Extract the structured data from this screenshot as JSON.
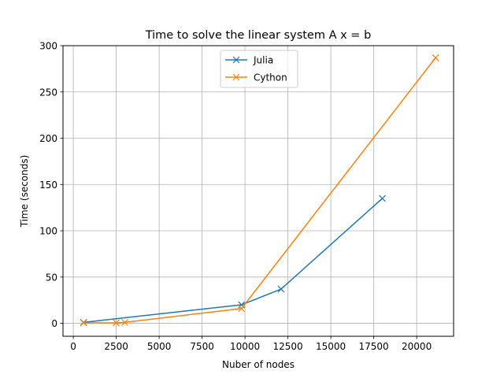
{
  "chart_data": {
    "type": "line",
    "title": "Time to solve the linear system A x = b",
    "xlabel": "Nuber of nodes",
    "ylabel": "Time (seconds)",
    "xlim": [
      -600,
      22150
    ],
    "ylim": [
      -14,
      300
    ],
    "xticks": [
      0,
      2500,
      5000,
      7500,
      10000,
      12500,
      15000,
      17500,
      20000
    ],
    "yticks": [
      0,
      50,
      100,
      150,
      200,
      250,
      300
    ],
    "grid": true,
    "legend_position": "top-center",
    "marker": "x",
    "series": [
      {
        "name": "Julia",
        "color": "#1f77b4",
        "x": [
          600,
          9800,
          12100,
          18000
        ],
        "y": [
          1,
          20,
          37,
          135
        ]
      },
      {
        "name": "Cython",
        "color": "#ff7f0e",
        "x": [
          600,
          2500,
          3000,
          9800,
          21100
        ],
        "y": [
          0.5,
          0.5,
          1,
          16,
          287
        ]
      }
    ]
  }
}
